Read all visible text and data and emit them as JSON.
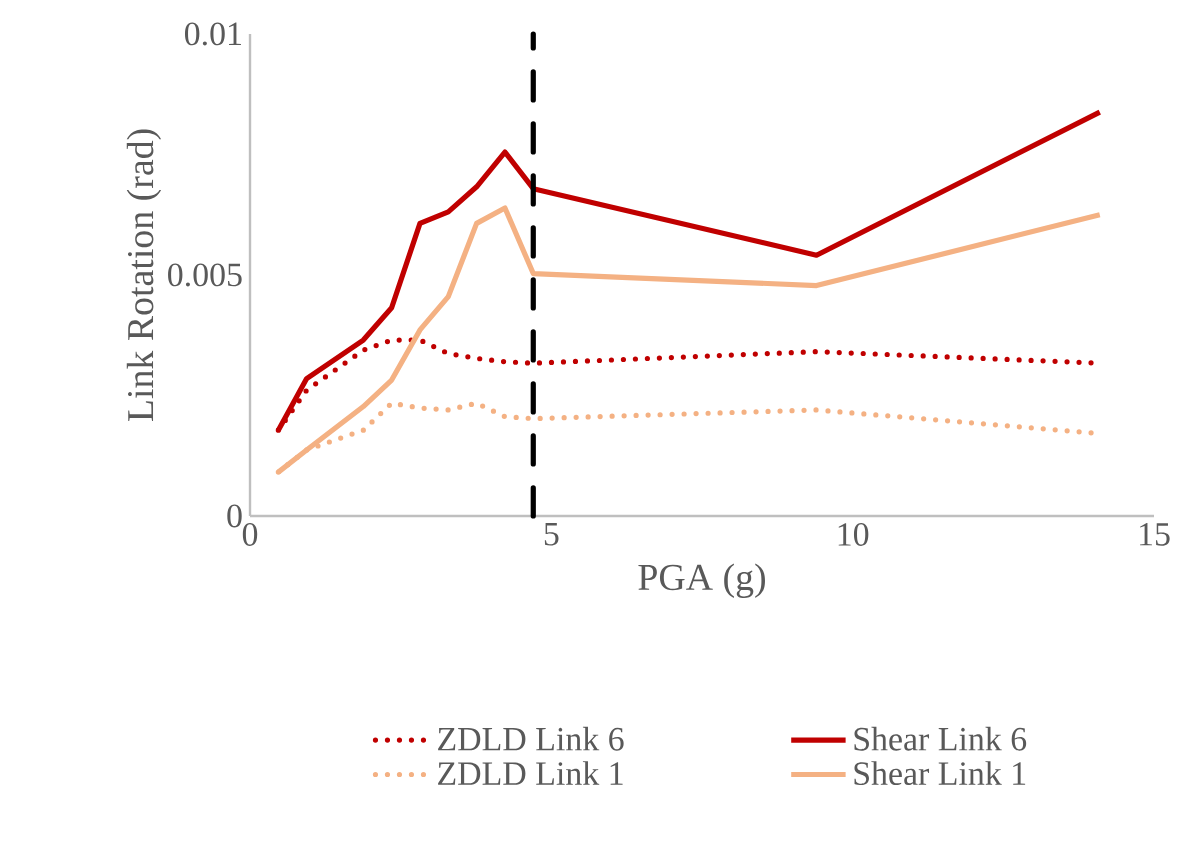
{
  "chart_data": {
    "type": "line",
    "xlabel": "PGA (g)",
    "ylabel": "Link Rotation (rad)",
    "x": [
      0.47,
      0.94,
      1.88,
      2.35,
      2.82,
      3.29,
      3.76,
      4.23,
      4.7,
      9.4,
      14.1
    ],
    "series": [
      {
        "name": "ZDLD Link 6",
        "color": "#c00000",
        "line_style": "dotted",
        "values": [
          0.00178,
          0.00261,
          0.00344,
          0.00365,
          0.00365,
          0.00337,
          0.00327,
          0.0032,
          0.00317,
          0.00341,
          0.00317
        ]
      },
      {
        "name": "Shear Link 6",
        "color": "#c00000",
        "line_style": "solid",
        "values": [
          0.00178,
          0.00285,
          0.00365,
          0.00432,
          0.00607,
          0.00631,
          0.00683,
          0.00755,
          0.00679,
          0.00541,
          0.00838
        ]
      },
      {
        "name": "ZDLD Link 1",
        "color": "#f4b183",
        "line_style": "dotted",
        "values": [
          0.00091,
          0.00137,
          0.00178,
          0.00234,
          0.00224,
          0.0022,
          0.00234,
          0.00206,
          0.00202,
          0.0022,
          0.00171
        ]
      },
      {
        "name": "Shear Link 1",
        "color": "#f4b183",
        "line_style": "solid",
        "values": [
          0.00091,
          0.00137,
          0.00227,
          0.00282,
          0.00386,
          0.00455,
          0.00607,
          0.00639,
          0.00503,
          0.00478,
          0.00625
        ]
      }
    ],
    "xlim": [
      0,
      15
    ],
    "xticks": [
      0,
      5,
      10,
      15
    ],
    "ylim": [
      0,
      0.01
    ],
    "yticks": [
      0,
      0.005,
      0.01
    ],
    "ref_lines": [
      {
        "axis": "x",
        "value": 4.7,
        "color": "#000000",
        "line_style": "dashdot"
      }
    ],
    "grid": false,
    "legend": "bottom",
    "marker": "none"
  }
}
